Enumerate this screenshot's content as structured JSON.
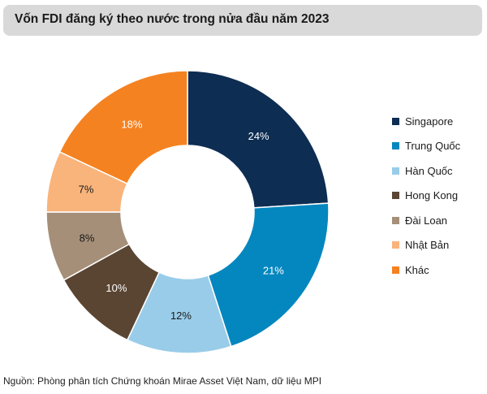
{
  "header": {
    "title": "Vốn FDI đăng ký theo nước trong nửa đầu năm 2023"
  },
  "chart_data": {
    "type": "pie",
    "donut": true,
    "categories": [
      "Singapore",
      "Trung Quốc",
      "Hàn Quốc",
      "Hong Kong",
      "Đài Loan",
      "Nhật Bản",
      "Khác"
    ],
    "values": [
      24,
      21,
      12,
      10,
      8,
      7,
      18
    ],
    "value_labels": [
      "24%",
      "21%",
      "12%",
      "10%",
      "8%",
      "7%",
      "18%"
    ],
    "colors": [
      "#0d2d52",
      "#0487bf",
      "#99cce9",
      "#5a4533",
      "#a58f78",
      "#f9b47b",
      "#f58220"
    ],
    "label_colors": [
      "#ffffff",
      "#ffffff",
      "#1a1a1a",
      "#ffffff",
      "#1a1a1a",
      "#1a1a1a",
      "#ffffff"
    ],
    "legend_position": "right"
  },
  "footer": {
    "source": "Nguồn: Phòng phân tích Chứng khoán Mirae Asset Việt Nam, dữ liệu MPI"
  }
}
